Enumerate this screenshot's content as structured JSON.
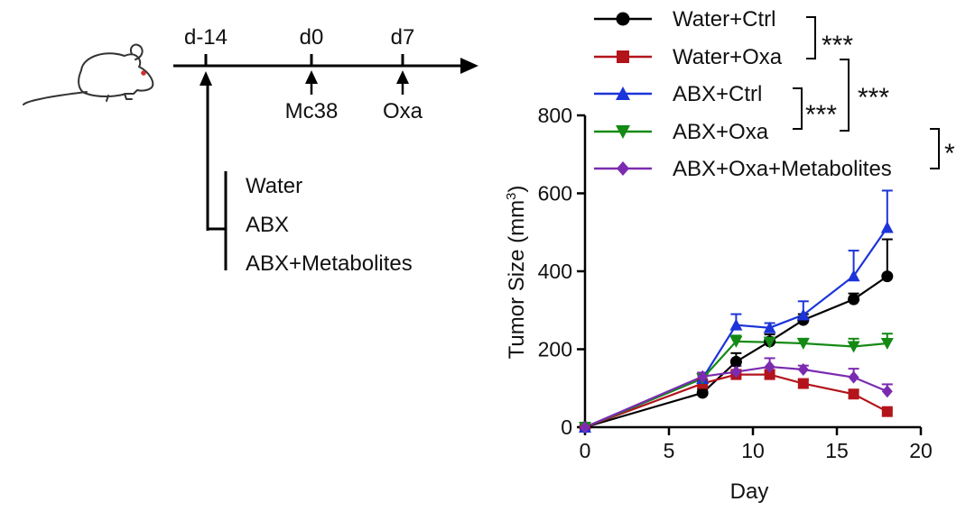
{
  "timeline": {
    "top_labels": [
      "d-14",
      "d0",
      "d7"
    ],
    "bottom_labels": [
      "Mc38",
      "Oxa"
    ],
    "groups": [
      "Water",
      "ABX",
      "ABX+Metabolites"
    ]
  },
  "chart_data": {
    "type": "line",
    "xlabel": "Day",
    "ylabel": "Tumor Size (mm",
    "ylabel_sup": "3",
    "ylabel_close": ")",
    "xlim": [
      0,
      20
    ],
    "ylim": [
      0,
      800
    ],
    "xticks": [
      "0",
      "5",
      "10",
      "15",
      "20"
    ],
    "yticks": [
      "0",
      "200",
      "400",
      "600",
      "800"
    ],
    "x": [
      0,
      7,
      9,
      11,
      13,
      16,
      18
    ],
    "legend_position": "top-right",
    "series": [
      {
        "name": "Water+Ctrl",
        "color": "#000000",
        "marker": "circle",
        "values": [
          0,
          88,
          168,
          220,
          275,
          328,
          387
        ],
        "errors": [
          0,
          10,
          22,
          18,
          15,
          15,
          95
        ]
      },
      {
        "name": "Water+Oxa",
        "color": "#b3141b",
        "marker": "square",
        "values": [
          0,
          112,
          135,
          135,
          112,
          85,
          40
        ],
        "errors": [
          0,
          8,
          12,
          12,
          10,
          10,
          5
        ]
      },
      {
        "name": "ABX+Ctrl",
        "color": "#1c34d9",
        "marker": "triangle-up",
        "values": [
          0,
          125,
          262,
          255,
          288,
          388,
          512
        ],
        "errors": [
          0,
          12,
          28,
          12,
          35,
          65,
          95
        ]
      },
      {
        "name": "ABX+Oxa",
        "color": "#148a14",
        "marker": "triangle-down",
        "values": [
          0,
          125,
          220,
          218,
          215,
          207,
          215
        ],
        "errors": [
          0,
          10,
          15,
          12,
          12,
          20,
          25
        ]
      },
      {
        "name": "ABX+Oxa+Metabolites",
        "color": "#7a2bb0",
        "marker": "diamond",
        "values": [
          0,
          130,
          142,
          155,
          148,
          128,
          92
        ],
        "errors": [
          0,
          10,
          15,
          22,
          10,
          22,
          18
        ]
      }
    ],
    "significance": [
      "***",
      "***",
      "***",
      "*"
    ]
  }
}
